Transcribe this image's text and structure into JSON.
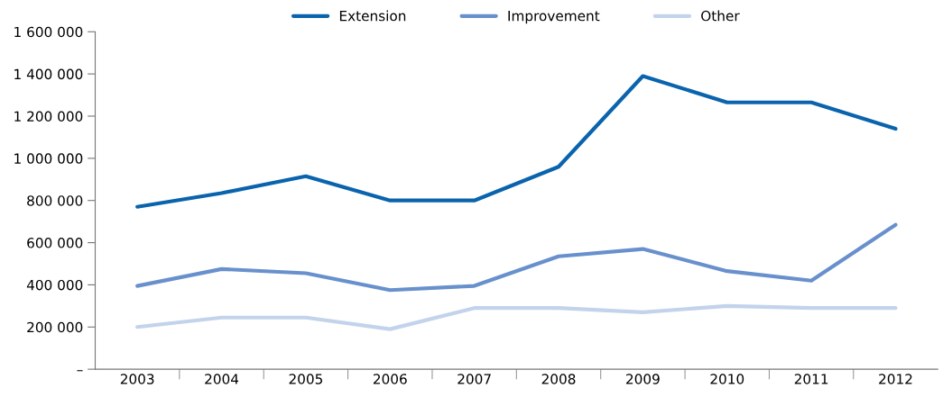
{
  "chart_data": {
    "type": "line",
    "categories": [
      "2003",
      "2004",
      "2005",
      "2006",
      "2007",
      "2008",
      "2009",
      "2010",
      "2011",
      "2012"
    ],
    "series": [
      {
        "name": "Extension",
        "color": "#0a64ad",
        "values": [
          770000,
          835000,
          915000,
          800000,
          800000,
          960000,
          1390000,
          1265000,
          1265000,
          1140000
        ]
      },
      {
        "name": "Improvement",
        "color": "#6890cc",
        "values": [
          395000,
          475000,
          455000,
          375000,
          395000,
          535000,
          570000,
          465000,
          420000,
          685000
        ]
      },
      {
        "name": "Other",
        "color": "#c3d3ec",
        "values": [
          200000,
          245000,
          245000,
          190000,
          290000,
          290000,
          270000,
          300000,
          290000,
          290000
        ]
      }
    ],
    "ylim": [
      0,
      1600000
    ],
    "yticks": [
      {
        "value": 0,
        "label": "–"
      },
      {
        "value": 200000,
        "label": "200 000"
      },
      {
        "value": 400000,
        "label": "400 000"
      },
      {
        "value": 600000,
        "label": "600 000"
      },
      {
        "value": 800000,
        "label": "800 000"
      },
      {
        "value": 1000000,
        "label": "1 000 000"
      },
      {
        "value": 1200000,
        "label": "1 200 000"
      },
      {
        "value": 1400000,
        "label": "1 400 000"
      },
      {
        "value": 1600000,
        "label": "1 600 000"
      }
    ],
    "grid": false,
    "legend": "top",
    "marker": "none",
    "line_style": "solid"
  }
}
